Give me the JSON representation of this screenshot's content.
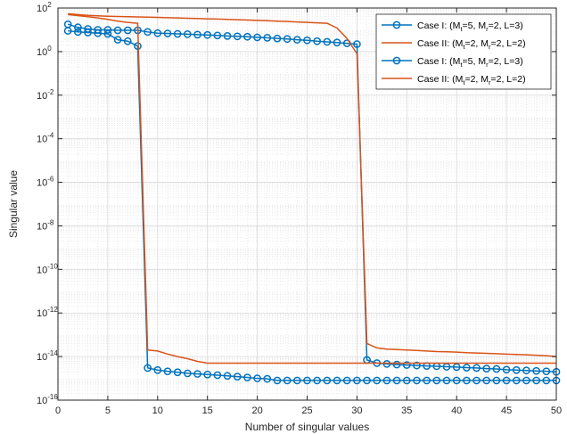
{
  "chart_data": {
    "type": "line",
    "title": "",
    "xlabel": "Number of singular values",
    "ylabel": "Singular value",
    "xlim": [
      0,
      50
    ],
    "ylim": [
      1e-16,
      100
    ],
    "yscale": "log",
    "grid": true,
    "legend_position": "top-right",
    "x_ticks": [
      0,
      5,
      10,
      15,
      20,
      25,
      30,
      35,
      40,
      45,
      50
    ],
    "y_tick_exponents": [
      2,
      0,
      -2,
      -4,
      -6,
      -8,
      -10,
      -12,
      -14,
      -16
    ],
    "colors": {
      "blue": "#0072BD",
      "orange": "#D95319"
    },
    "legend": [
      {
        "pre": "Case I: (M",
        "s1": "t",
        "mid1": "=5, M",
        "s2": "r",
        "post": "=2, L=3)",
        "color": "#0072BD",
        "marker": "circle"
      },
      {
        "pre": "Case II: (M",
        "s1": "t",
        "mid1": "=2, M",
        "s2": "r",
        "post": "=2, L=2)",
        "color": "#D95319",
        "marker": "none"
      },
      {
        "pre": "Case I: (M",
        "s1": "t",
        "mid1": "=5, M",
        "s2": "r",
        "post": "=2, L=3)",
        "color": "#0072BD",
        "marker": "circle"
      },
      {
        "pre": "Case II: (M",
        "s1": "t",
        "mid1": "=2, M",
        "s2": "r",
        "post": "=2, L=2)",
        "color": "#D95319",
        "marker": "none"
      }
    ],
    "series": [
      {
        "color": "#0072BD",
        "marker": "circle",
        "x": [
          1,
          2,
          3,
          4,
          5,
          6,
          7,
          8,
          9,
          10,
          11,
          12,
          13,
          14,
          15,
          16,
          17,
          18,
          19,
          20,
          21,
          22,
          23,
          24,
          25,
          26,
          27,
          28,
          29,
          30,
          31,
          32,
          33,
          34,
          35,
          36,
          37,
          38,
          39,
          40,
          41,
          42,
          43,
          44,
          45,
          46,
          47,
          48,
          49,
          50
        ],
        "y": [
          18,
          13,
          11,
          10,
          10,
          9.5,
          9.5,
          9.5,
          8,
          7,
          6.8,
          6.5,
          6.3,
          6,
          5.8,
          5.5,
          5.2,
          5,
          4.8,
          4.5,
          4.3,
          4,
          3.8,
          3.5,
          3.3,
          3.0,
          2.8,
          2.6,
          2.4,
          2.2,
          7e-15,
          5e-15,
          4.6e-15,
          4.3e-15,
          4.1e-15,
          3.9e-15,
          3.7e-15,
          3.6e-15,
          3.4e-15,
          3.3e-15,
          3.1e-15,
          3e-15,
          2.8e-15,
          2.7e-15,
          2.5e-15,
          2.4e-15,
          2.3e-15,
          2.2e-15,
          2.1e-15,
          2e-15
        ]
      },
      {
        "color": "#D95319",
        "marker": "none",
        "x": [
          1,
          2,
          3,
          4,
          5,
          6,
          7,
          8,
          9,
          10,
          11,
          12,
          13,
          14,
          15,
          16,
          17,
          18,
          19,
          20,
          21,
          22,
          23,
          24,
          25,
          26,
          27,
          28,
          29,
          30,
          31,
          32,
          33,
          34,
          35,
          36,
          37,
          38,
          39,
          40,
          41,
          42,
          43,
          44,
          45,
          46,
          47,
          48,
          49,
          50
        ],
        "y": [
          55,
          50,
          46,
          44,
          42,
          41,
          40,
          39,
          38,
          37,
          36,
          35,
          34,
          33,
          32,
          31,
          30,
          29,
          28,
          27,
          26,
          25,
          24,
          23,
          22,
          21,
          20,
          12,
          4,
          0.8,
          4e-14,
          2.5e-14,
          2.2e-14,
          2.1e-14,
          2e-14,
          1.9e-14,
          1.8e-14,
          1.7e-14,
          1.65e-14,
          1.6e-14,
          1.5e-14,
          1.45e-14,
          1.4e-14,
          1.35e-14,
          1.3e-14,
          1.25e-14,
          1.2e-14,
          1.15e-14,
          1.1e-14,
          1e-14
        ]
      },
      {
        "color": "#0072BD",
        "marker": "circle",
        "x": [
          1,
          2,
          3,
          4,
          5,
          6,
          7,
          8,
          9,
          10,
          11,
          12,
          13,
          14,
          15,
          16,
          17,
          18,
          19,
          20,
          21,
          22,
          23,
          24,
          25,
          26,
          27,
          28,
          29,
          30,
          31,
          32,
          33,
          34,
          35,
          36,
          37,
          38,
          39,
          40,
          41,
          42,
          43,
          44,
          45,
          46,
          47,
          48,
          49,
          50
        ],
        "y": [
          9,
          8,
          7.5,
          7,
          6.5,
          3.5,
          3,
          1.8,
          3e-15,
          2.4e-15,
          2.1e-15,
          1.9e-15,
          1.7e-15,
          1.6e-15,
          1.5e-15,
          1.4e-15,
          1.3e-15,
          1.2e-15,
          1.1e-15,
          1e-15,
          9.5e-16,
          8e-16,
          8e-16,
          8e-16,
          8e-16,
          8e-16,
          8e-16,
          8e-16,
          8e-16,
          8e-16,
          8e-16,
          8e-16,
          8e-16,
          8e-16,
          8e-16,
          8e-16,
          8e-16,
          8e-16,
          8e-16,
          8e-16,
          8e-16,
          8e-16,
          8e-16,
          8e-16,
          8e-16,
          8e-16,
          8e-16,
          8e-16,
          8e-16,
          8e-16
        ]
      },
      {
        "color": "#D95319",
        "marker": "none",
        "x": [
          1,
          2,
          3,
          4,
          5,
          6,
          7,
          8,
          9,
          10,
          11,
          12,
          13,
          14,
          15,
          16,
          17,
          18,
          19,
          20,
          21,
          22,
          23,
          24,
          25,
          26,
          27,
          28,
          29,
          30,
          31,
          32,
          33,
          34,
          35,
          36,
          37,
          38,
          39,
          40,
          41,
          42,
          43,
          44,
          45,
          46,
          47,
          48,
          49,
          50
        ],
        "y": [
          50,
          45,
          40,
          35,
          30,
          25,
          22,
          20,
          2e-14,
          1.8e-14,
          1.3e-14,
          1e-14,
          8e-15,
          6e-15,
          5e-15,
          5e-15,
          5e-15,
          5e-15,
          5e-15,
          5e-15,
          5e-15,
          5e-15,
          5e-15,
          5e-15,
          5e-15,
          5e-15,
          5e-15,
          5e-15,
          5e-15,
          5e-15,
          5e-15,
          5e-15,
          5e-15,
          5e-15,
          5e-15,
          5e-15,
          5e-15,
          5e-15,
          5e-15,
          5e-15,
          5e-15,
          5e-15,
          5e-15,
          5e-15,
          5e-15,
          5e-15,
          5e-15,
          5e-15,
          5e-15,
          5e-15
        ]
      }
    ]
  }
}
